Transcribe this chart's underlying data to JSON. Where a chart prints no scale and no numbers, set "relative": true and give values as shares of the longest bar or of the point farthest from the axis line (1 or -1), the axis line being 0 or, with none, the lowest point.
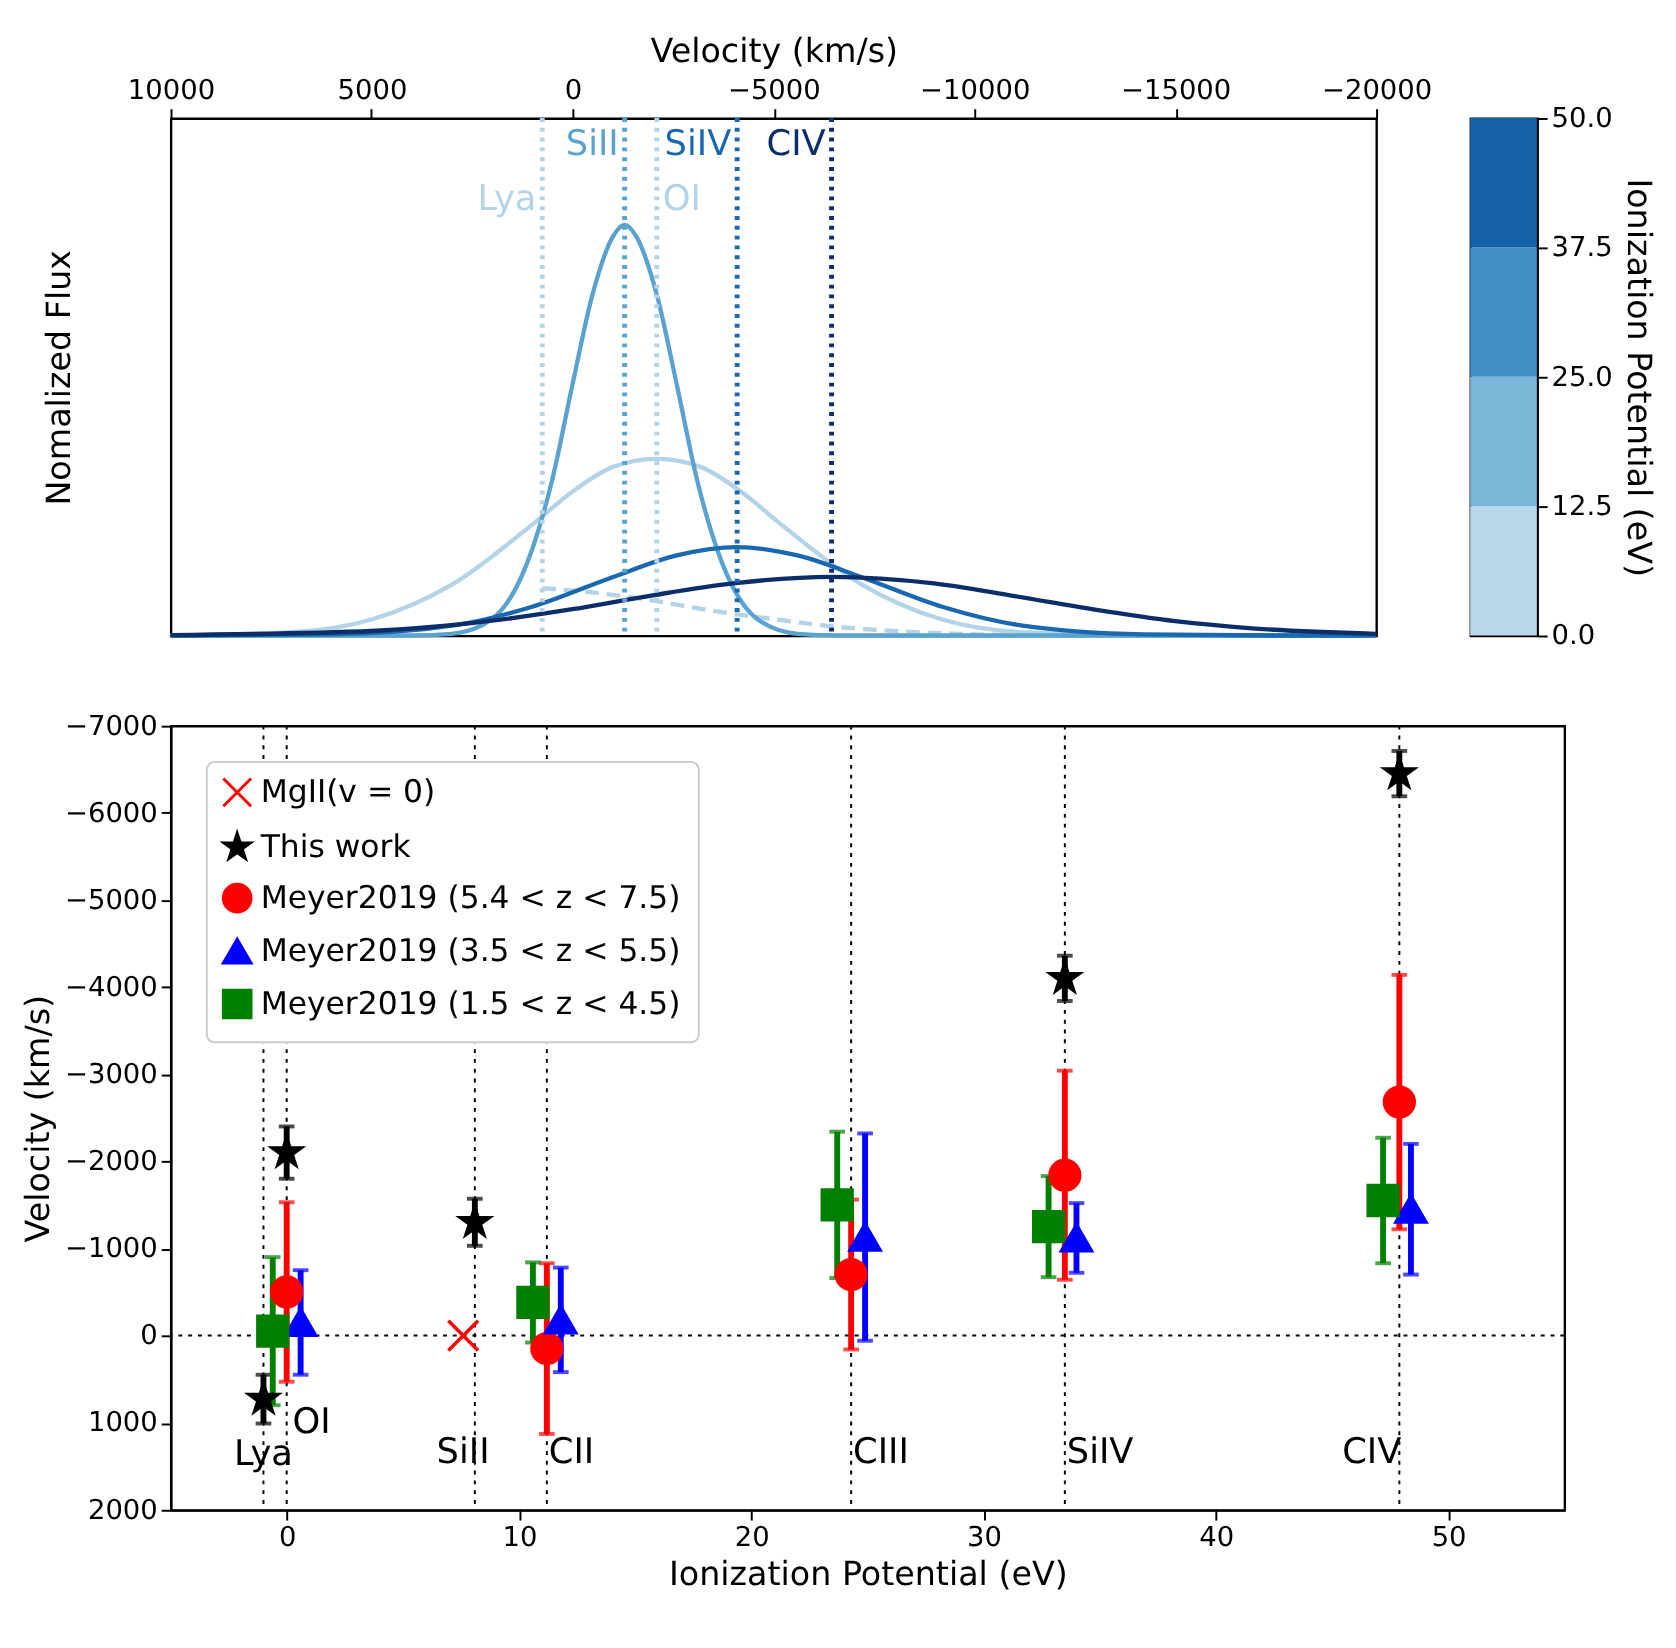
{
  "chart_data": [
    {
      "type": "line",
      "xlabel": "Velocity (km/s)",
      "ylabel": "Nomalized Flux",
      "xlim": [
        10000,
        -20000
      ],
      "xticks": [
        10000,
        5000,
        0,
        -5000,
        -10000,
        -15000,
        -20000
      ],
      "relative": true,
      "tick_labels": "x",
      "clabel": "Ionization Potential (eV)",
      "clim": [
        0,
        50
      ],
      "cticks": [
        {
          "value": 0,
          "label": "0.0"
        },
        {
          "value": 12.5,
          "label": "12.5"
        },
        {
          "value": 25,
          "label": "25.0"
        },
        {
          "value": 37.5,
          "label": "37.5"
        },
        {
          "value": 50,
          "label": "50.0"
        }
      ],
      "ref_lines": [
        {
          "axis": "x",
          "value": 750,
          "label": "Lya",
          "color": "#b3d3e8",
          "line_style": "dotted"
        },
        {
          "axis": "x",
          "value": -1300,
          "label": "SiII",
          "color": "#5aa2cf",
          "line_style": "dotted"
        },
        {
          "axis": "x",
          "value": -2100,
          "label": "OI",
          "color": "#b3d3e8",
          "line_style": "dotted"
        },
        {
          "axis": "x",
          "value": -4100,
          "label": "SiIV",
          "color": "#1a68b0",
          "line_style": "dotted"
        },
        {
          "axis": "x",
          "value": -6450,
          "label": "CIV",
          "color": "#0b2e6b",
          "line_style": "dotted"
        }
      ],
      "series": [
        {
          "color": "#b3d3e8",
          "x": [
            10000,
            7000,
            5000,
            3000,
            1000,
            0,
            -1000,
            -2100,
            -3200,
            -4200,
            -5200,
            -7200,
            -9200,
            -11200,
            -14200,
            -20000
          ],
          "values": [
            0.0,
            0.008,
            0.039,
            0.124,
            0.27,
            0.35,
            0.41,
            0.43,
            0.41,
            0.35,
            0.27,
            0.124,
            0.039,
            0.008,
            0.0,
            0.0
          ]
        },
        {
          "color": "#b3d3e8",
          "line_style": "dashed",
          "x": [
            750,
            -500,
            -2000,
            -3500,
            -5000,
            -6500,
            -8000,
            -10000,
            -12000
          ],
          "values": [
            0.115,
            0.105,
            0.085,
            0.06,
            0.04,
            0.022,
            0.011,
            0.003,
            0.0
          ]
        },
        {
          "color": "#5aa2cf",
          "x": [
            10000,
            4000,
            3000,
            2000,
            1000,
            500,
            0,
            -500,
            -1000,
            -1300,
            -1600,
            -2100,
            -2600,
            -3100,
            -3600,
            -4600,
            -5600,
            -6600,
            -20000
          ],
          "values": [
            0.0,
            0.0,
            0.004,
            0.04,
            0.21,
            0.38,
            0.61,
            0.83,
            0.97,
            1.0,
            0.97,
            0.83,
            0.61,
            0.38,
            0.21,
            0.04,
            0.004,
            0.0,
            0.0
          ]
        },
        {
          "color": "#1a68b0",
          "x": [
            10000,
            6000,
            3000,
            1000,
            -1000,
            -2600,
            -4100,
            -5600,
            -7200,
            -9200,
            -11200,
            -14200,
            -18000,
            -20000
          ],
          "values": [
            0.0,
            0.003,
            0.024,
            0.07,
            0.142,
            0.195,
            0.215,
            0.195,
            0.142,
            0.07,
            0.024,
            0.003,
            0.0,
            0.0
          ]
        },
        {
          "color": "#0b2e6b",
          "x": [
            10000,
            5000,
            2000,
            0,
            -2000,
            -4000,
            -6450,
            -9000,
            -11000,
            -13000,
            -15000,
            -17000,
            -20000
          ],
          "values": [
            0.001,
            0.011,
            0.036,
            0.064,
            0.098,
            0.127,
            0.143,
            0.127,
            0.096,
            0.063,
            0.035,
            0.017,
            0.004
          ]
        }
      ]
    },
    {
      "type": "scatter",
      "xlabel": "Ionization Potential (eV)",
      "ylabel": "Velocity (km/s)",
      "xlim": [
        -5,
        55
      ],
      "xticks": [
        0,
        10,
        20,
        30,
        40,
        50
      ],
      "ylim": [
        2000,
        -7000
      ],
      "yticks": [
        2000,
        1000,
        0,
        -1000,
        -2000,
        -3000,
        -4000,
        -5000,
        -6000,
        -7000
      ],
      "legend": "top left",
      "ref_lines": [
        {
          "axis": "y",
          "value": 0,
          "color": "#000000",
          "line_style": "dotted"
        },
        {
          "axis": "x",
          "value": -1,
          "label": "Lya",
          "color": "#000000",
          "line_style": "dotted"
        },
        {
          "axis": "x",
          "value": 0,
          "label": "OI",
          "color": "#000000",
          "line_style": "dotted"
        },
        {
          "axis": "x",
          "value": 8.1,
          "label": "SiII",
          "color": "#000000",
          "line_style": "dotted"
        },
        {
          "axis": "x",
          "value": 11.2,
          "label": "CII",
          "color": "#000000",
          "line_style": "dotted"
        },
        {
          "axis": "x",
          "value": 24.3,
          "label": "CIII",
          "color": "#000000",
          "line_style": "dotted"
        },
        {
          "axis": "x",
          "value": 33.5,
          "label": "SiIV",
          "color": "#000000",
          "line_style": "dotted"
        },
        {
          "axis": "x",
          "value": 47.9,
          "label": "CIV",
          "color": "#000000",
          "line_style": "dotted"
        }
      ],
      "series": [
        {
          "name": "MgII(v = 0)",
          "color": "#ff0000",
          "marker": "cross",
          "x": [
            7.6
          ],
          "values": [
            0
          ]
        },
        {
          "name": "This work",
          "color": "#000000",
          "marker": "star",
          "x": [
            -1,
            0,
            8.1,
            33.5,
            47.9
          ],
          "values": [
            730,
            -2100,
            -1300,
            -4100,
            -6450
          ],
          "errors": [
            280,
            300,
            270,
            260,
            260
          ]
        },
        {
          "name": "Meyer2019 (5.4 < z < 7.5)",
          "color": "#ff0000",
          "marker": "circle",
          "x": [
            0,
            11.2,
            24.3,
            33.5,
            47.9
          ],
          "values": [
            -500,
            150,
            -700,
            -1840,
            -2680
          ],
          "errors": [
            1030,
            980,
            860,
            1200,
            1460
          ]
        },
        {
          "name": "Meyer2019 (3.5 < z < 5.5)",
          "color": "#0000ff",
          "marker": "triangle",
          "x": [
            0.6,
            11.8,
            24.9,
            34.0,
            48.4
          ],
          "values": [
            -150,
            -180,
            -1130,
            -1120,
            -1450
          ],
          "errors": [
            600,
            600,
            1190,
            400,
            750
          ]
        },
        {
          "name": "Meyer2019 (1.5 < z < 4.5)",
          "color": "#008000",
          "marker": "square",
          "x": [
            -0.6,
            10.6,
            23.7,
            32.8,
            47.2
          ],
          "values": [
            -50,
            -380,
            -1500,
            -1250,
            -1550
          ],
          "errors": [
            850,
            460,
            840,
            580,
            720
          ]
        }
      ]
    }
  ]
}
